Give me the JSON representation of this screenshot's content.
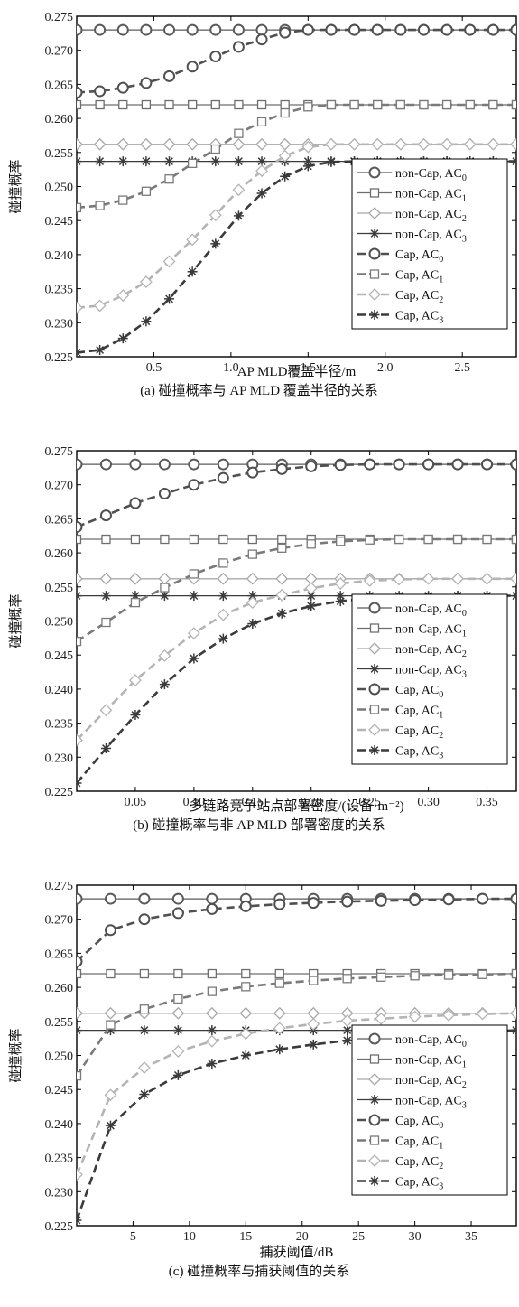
{
  "chart_data": [
    {
      "type": "line",
      "caption": "(a) 碰撞概率与 AP MLD 覆盖半径的关系",
      "xlabel": "AP MLD覆盖半径/m",
      "ylabel": "碰撞概率",
      "xlim": [
        0,
        2.85
      ],
      "ylim": [
        0.225,
        0.275
      ],
      "xticks": [
        0.5,
        1.0,
        1.5,
        2.0,
        2.5
      ],
      "xtick_labels": [
        "0.5",
        "1.0",
        "1.5",
        "2.0",
        "2.5"
      ],
      "yticks": [
        0.225,
        0.23,
        0.235,
        0.24,
        0.245,
        0.25,
        0.255,
        0.26,
        0.265,
        0.27,
        0.275
      ],
      "ytick_labels": [
        "0.225",
        "0.230",
        "0.235",
        "0.240",
        "0.245",
        "0.250",
        "0.255",
        "0.260",
        "0.265",
        "0.270",
        "0.275"
      ],
      "x": [
        0,
        0.15,
        0.3,
        0.45,
        0.6,
        0.75,
        0.9,
        1.05,
        1.2,
        1.35,
        1.5,
        1.65,
        1.8,
        1.95,
        2.1,
        2.25,
        2.4,
        2.55,
        2.7,
        2.85
      ],
      "legend": {
        "position": "bottom-right"
      },
      "series": [
        {
          "name": "non-Cap, AC",
          "sub": "0",
          "values": [
            0.273,
            0.273,
            0.273,
            0.273,
            0.273,
            0.273,
            0.273,
            0.273,
            0.273,
            0.273,
            0.273,
            0.273,
            0.273,
            0.273,
            0.273,
            0.273,
            0.273,
            0.273,
            0.273,
            0.273
          ]
        },
        {
          "name": "non-Cap, AC",
          "sub": "1",
          "values": [
            0.262,
            0.262,
            0.262,
            0.262,
            0.262,
            0.262,
            0.262,
            0.262,
            0.262,
            0.262,
            0.262,
            0.262,
            0.262,
            0.262,
            0.262,
            0.262,
            0.262,
            0.262,
            0.262,
            0.262
          ]
        },
        {
          "name": "non-Cap, AC",
          "sub": "2",
          "values": [
            0.2562,
            0.2562,
            0.2562,
            0.2562,
            0.2562,
            0.2562,
            0.2562,
            0.2562,
            0.2562,
            0.2562,
            0.2562,
            0.2562,
            0.2562,
            0.2562,
            0.2562,
            0.2562,
            0.2562,
            0.2562,
            0.2562,
            0.2562
          ]
        },
        {
          "name": "non-Cap, AC",
          "sub": "3",
          "values": [
            0.2537,
            0.2537,
            0.2537,
            0.2537,
            0.2537,
            0.2537,
            0.2537,
            0.2537,
            0.2537,
            0.2537,
            0.2537,
            0.2537,
            0.2537,
            0.2537,
            0.2537,
            0.2537,
            0.2537,
            0.2537,
            0.2537,
            0.2537
          ]
        },
        {
          "name": "Cap, AC",
          "sub": "0",
          "values": [
            0.2638,
            0.264,
            0.2645,
            0.2652,
            0.2662,
            0.2676,
            0.2691,
            0.2705,
            0.2716,
            0.2726,
            0.273,
            0.273,
            0.273,
            0.273,
            0.273,
            0.273,
            0.273,
            0.273,
            0.273,
            0.273
          ]
        },
        {
          "name": "Cap, AC",
          "sub": "1",
          "values": [
            0.2469,
            0.2472,
            0.248,
            0.2493,
            0.2511,
            0.2534,
            0.2555,
            0.2578,
            0.2595,
            0.2608,
            0.2617,
            0.262,
            0.262,
            0.262,
            0.262,
            0.262,
            0.262,
            0.262,
            0.262,
            0.262
          ]
        },
        {
          "name": "Cap, AC",
          "sub": "2",
          "values": [
            0.2322,
            0.2325,
            0.234,
            0.236,
            0.239,
            0.2422,
            0.2458,
            0.2495,
            0.2523,
            0.2545,
            0.2558,
            0.2562,
            0.2562,
            0.2562,
            0.2562,
            0.2562,
            0.2562,
            0.2562,
            0.2562,
            0.2562
          ]
        },
        {
          "name": "Cap, AC",
          "sub": "3",
          "values": [
            0.2256,
            0.226,
            0.2277,
            0.2302,
            0.2335,
            0.2375,
            0.2416,
            0.2457,
            0.249,
            0.2515,
            0.253,
            0.2536,
            0.2537,
            0.2537,
            0.2537,
            0.2537,
            0.2537,
            0.2537,
            0.2537,
            0.2537
          ]
        }
      ]
    },
    {
      "type": "line",
      "caption": "(b) 碰撞概率与非 AP MLD 部署密度的关系",
      "xlabel": "多链路竞争站点部署密度/(设备·m⁻²)",
      "ylabel": "碰撞概率",
      "xlim": [
        0,
        0.375
      ],
      "ylim": [
        0.225,
        0.275
      ],
      "xticks": [
        0.05,
        0.1,
        0.15,
        0.2,
        0.25,
        0.3,
        0.35
      ],
      "xtick_labels": [
        "0.05",
        "0.10",
        "0.15",
        "0.20",
        "0.25",
        "0.30",
        "0.35"
      ],
      "yticks": [
        0.225,
        0.23,
        0.235,
        0.24,
        0.245,
        0.25,
        0.255,
        0.26,
        0.265,
        0.27,
        0.275
      ],
      "ytick_labels": [
        "0.225",
        "0.230",
        "0.235",
        "0.240",
        "0.245",
        "0.250",
        "0.255",
        "0.260",
        "0.265",
        "0.270",
        "0.275"
      ],
      "x": [
        0,
        0.025,
        0.05,
        0.075,
        0.1,
        0.125,
        0.15,
        0.175,
        0.2,
        0.225,
        0.25,
        0.275,
        0.3,
        0.325,
        0.35,
        0.375
      ],
      "legend": {
        "position": "bottom-right"
      },
      "series": [
        {
          "name": "non-Cap, AC",
          "sub": "0",
          "values": [
            0.273,
            0.273,
            0.273,
            0.273,
            0.273,
            0.273,
            0.273,
            0.273,
            0.273,
            0.273,
            0.273,
            0.273,
            0.273,
            0.273,
            0.273,
            0.273
          ]
        },
        {
          "name": "non-Cap, AC",
          "sub": "1",
          "values": [
            0.262,
            0.262,
            0.262,
            0.262,
            0.262,
            0.262,
            0.262,
            0.262,
            0.262,
            0.262,
            0.262,
            0.262,
            0.262,
            0.262,
            0.262,
            0.262
          ]
        },
        {
          "name": "non-Cap, AC",
          "sub": "2",
          "values": [
            0.2562,
            0.2562,
            0.2562,
            0.2562,
            0.2562,
            0.2562,
            0.2562,
            0.2562,
            0.2562,
            0.2562,
            0.2562,
            0.2562,
            0.2562,
            0.2562,
            0.2562,
            0.2562
          ]
        },
        {
          "name": "non-Cap, AC",
          "sub": "3",
          "values": [
            0.2537,
            0.2537,
            0.2537,
            0.2537,
            0.2537,
            0.2537,
            0.2537,
            0.2537,
            0.2537,
            0.2537,
            0.2537,
            0.2537,
            0.2537,
            0.2537,
            0.2537,
            0.2537
          ]
        },
        {
          "name": "Cap, AC",
          "sub": "0",
          "values": [
            0.2638,
            0.2655,
            0.2673,
            0.2687,
            0.27,
            0.271,
            0.2718,
            0.2723,
            0.2727,
            0.2729,
            0.273,
            0.273,
            0.273,
            0.273,
            0.273,
            0.273
          ]
        },
        {
          "name": "Cap, AC",
          "sub": "1",
          "values": [
            0.247,
            0.2498,
            0.2527,
            0.2549,
            0.2569,
            0.2585,
            0.2598,
            0.2607,
            0.2613,
            0.2617,
            0.2619,
            0.262,
            0.262,
            0.262,
            0.262,
            0.262
          ]
        },
        {
          "name": "Cap, AC",
          "sub": "2",
          "values": [
            0.2325,
            0.2369,
            0.2413,
            0.2449,
            0.2482,
            0.2509,
            0.2527,
            0.2538,
            0.2548,
            0.2555,
            0.2559,
            0.2561,
            0.2562,
            0.2562,
            0.2562,
            0.2562
          ]
        },
        {
          "name": "Cap, AC",
          "sub": "3",
          "values": [
            0.2262,
            0.2313,
            0.2362,
            0.2407,
            0.2445,
            0.2474,
            0.2496,
            0.2511,
            0.2522,
            0.2529,
            0.2533,
            0.2535,
            0.2536,
            0.2537,
            0.2537,
            0.2537
          ]
        }
      ]
    },
    {
      "type": "line",
      "caption": "(c) 碰撞概率与捕获阈值的关系",
      "xlabel": "捕获阈值/dB",
      "ylabel": "碰撞概率",
      "xlim": [
        0,
        39
      ],
      "ylim": [
        0.225,
        0.275
      ],
      "xticks": [
        5,
        10,
        15,
        20,
        25,
        30,
        35
      ],
      "xtick_labels": [
        "5",
        "10",
        "15",
        "20",
        "25",
        "30",
        "35"
      ],
      "yticks": [
        0.225,
        0.23,
        0.235,
        0.24,
        0.245,
        0.25,
        0.255,
        0.26,
        0.265,
        0.27,
        0.275
      ],
      "ytick_labels": [
        "0.225",
        "0.230",
        "0.235",
        "0.240",
        "0.245",
        "0.250",
        "0.255",
        "0.260",
        "0.265",
        "0.270",
        "0.275"
      ],
      "x": [
        0,
        3,
        6,
        9,
        12,
        15,
        18,
        21,
        24,
        27,
        30,
        33,
        36,
        39
      ],
      "legend": {
        "position": "bottom-right"
      },
      "series": [
        {
          "name": "non-Cap, AC",
          "sub": "0",
          "values": [
            0.273,
            0.273,
            0.273,
            0.273,
            0.273,
            0.273,
            0.273,
            0.273,
            0.273,
            0.273,
            0.273,
            0.273,
            0.273,
            0.273
          ]
        },
        {
          "name": "non-Cap, AC",
          "sub": "1",
          "values": [
            0.262,
            0.262,
            0.262,
            0.262,
            0.262,
            0.262,
            0.262,
            0.262,
            0.262,
            0.262,
            0.262,
            0.262,
            0.262,
            0.262
          ]
        },
        {
          "name": "non-Cap, AC",
          "sub": "2",
          "values": [
            0.2562,
            0.2562,
            0.2562,
            0.2562,
            0.2562,
            0.2562,
            0.2562,
            0.2562,
            0.2562,
            0.2562,
            0.2562,
            0.2562,
            0.2562,
            0.2562
          ]
        },
        {
          "name": "non-Cap, AC",
          "sub": "3",
          "values": [
            0.2537,
            0.2537,
            0.2537,
            0.2537,
            0.2537,
            0.2537,
            0.2537,
            0.2537,
            0.2537,
            0.2537,
            0.2537,
            0.2537,
            0.2537,
            0.2537
          ]
        },
        {
          "name": "Cap, AC",
          "sub": "0",
          "values": [
            0.2638,
            0.2684,
            0.27,
            0.2709,
            0.2715,
            0.2719,
            0.2722,
            0.2724,
            0.2726,
            0.2727,
            0.2728,
            0.2729,
            0.273,
            0.273
          ]
        },
        {
          "name": "Cap, AC",
          "sub": "1",
          "values": [
            0.247,
            0.2545,
            0.2568,
            0.2583,
            0.2594,
            0.2601,
            0.2606,
            0.261,
            0.2613,
            0.2615,
            0.2617,
            0.2618,
            0.2619,
            0.262
          ]
        },
        {
          "name": "Cap, AC",
          "sub": "2",
          "values": [
            0.2325,
            0.2442,
            0.2482,
            0.2506,
            0.2521,
            0.2532,
            0.254,
            0.2546,
            0.2551,
            0.2554,
            0.2557,
            0.2559,
            0.2561,
            0.2562
          ]
        },
        {
          "name": "Cap, AC",
          "sub": "3",
          "values": [
            0.2258,
            0.2397,
            0.2443,
            0.2471,
            0.2488,
            0.25,
            0.2509,
            0.2516,
            0.2522,
            0.2526,
            0.253,
            0.2533,
            0.2535,
            0.2537
          ]
        }
      ]
    }
  ],
  "styles": {
    "series_colors": [
      "#5a5a5a",
      "#6e6e6e",
      "#a8a8a8",
      "#3c3c3c",
      "#505050",
      "#7a7a7a",
      "#b4b4b4",
      "#3a3a3a"
    ],
    "series_markers": [
      "circle",
      "square",
      "diamond",
      "star",
      "circle",
      "square",
      "diamond",
      "star"
    ],
    "dashed": [
      false,
      false,
      false,
      false,
      true,
      true,
      true,
      true
    ]
  }
}
